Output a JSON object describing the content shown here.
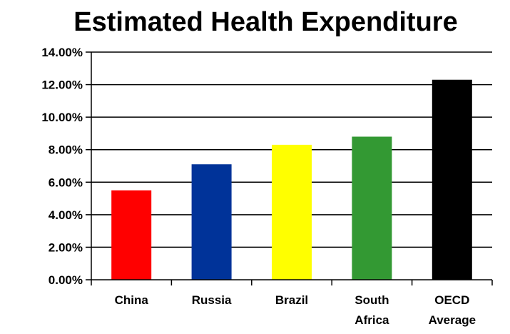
{
  "chart_data": {
    "type": "bar",
    "title": "Estimated Health Expenditure",
    "xlabel": "",
    "ylabel": "",
    "categories": [
      [
        "China"
      ],
      [
        "Russia"
      ],
      [
        "Brazil"
      ],
      [
        "South",
        "Africa"
      ],
      [
        "OECD",
        "Average"
      ]
    ],
    "values": [
      5.5,
      7.1,
      8.3,
      8.8,
      12.3
    ],
    "colors": [
      "#ff0000",
      "#003399",
      "#ffff00",
      "#339933",
      "#000000"
    ],
    "ylim": [
      0,
      14
    ],
    "yticks": [
      "0.00%",
      "2.00%",
      "4.00%",
      "6.00%",
      "8.00%",
      "10.00%",
      "12.00%",
      "14.00%"
    ],
    "grid": true,
    "legend": "none"
  }
}
